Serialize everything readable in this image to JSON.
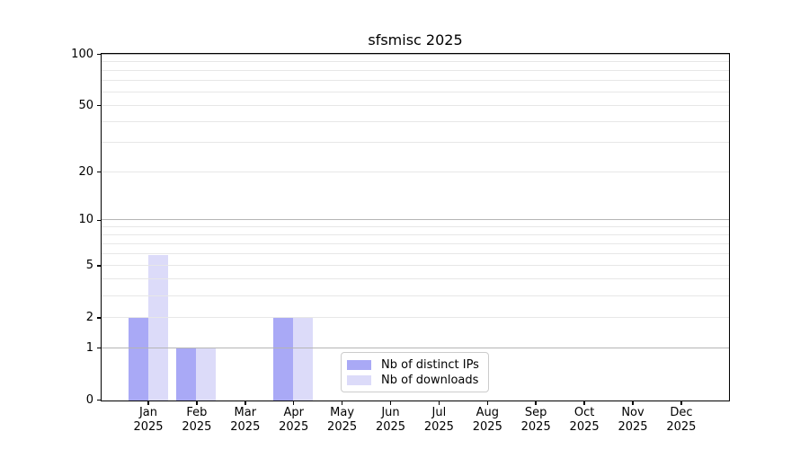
{
  "chart_data": {
    "type": "bar",
    "title": "sfsmisc 2025",
    "categories": [
      "Jan",
      "Feb",
      "Mar",
      "Apr",
      "May",
      "Jun",
      "Jul",
      "Aug",
      "Sep",
      "Oct",
      "Nov",
      "Dec"
    ],
    "category_year": "2025",
    "series": [
      {
        "name": "Nb of distinct IPs",
        "color": "#a9a9f6",
        "values": [
          2,
          1,
          0,
          2,
          0,
          0,
          0,
          0,
          0,
          0,
          0,
          0
        ]
      },
      {
        "name": "Nb of downloads",
        "color": "#dcdbf9",
        "values": [
          6,
          1,
          0,
          2,
          0,
          0,
          0,
          0,
          0,
          0,
          0,
          0
        ]
      }
    ],
    "y_axis": {
      "scale": "log1p",
      "ticks": [
        0,
        1,
        2,
        5,
        10,
        20,
        50,
        100
      ],
      "major_gridlines": [
        1,
        10,
        100
      ],
      "minor_gridlines": [
        2,
        3,
        4,
        5,
        6,
        7,
        8,
        9,
        20,
        30,
        40,
        50,
        60,
        70,
        80,
        90
      ],
      "ylim": [
        0,
        113
      ]
    },
    "x_axis": {
      "ylabel": "",
      "xlabel": ""
    },
    "legend": {
      "position": "lower center"
    },
    "colors": {
      "major_grid": "#b5b5b5",
      "minor_grid": "#e7e7e7",
      "spine": "#000000",
      "background": "#ffffff"
    },
    "grid_above_bars": true
  }
}
